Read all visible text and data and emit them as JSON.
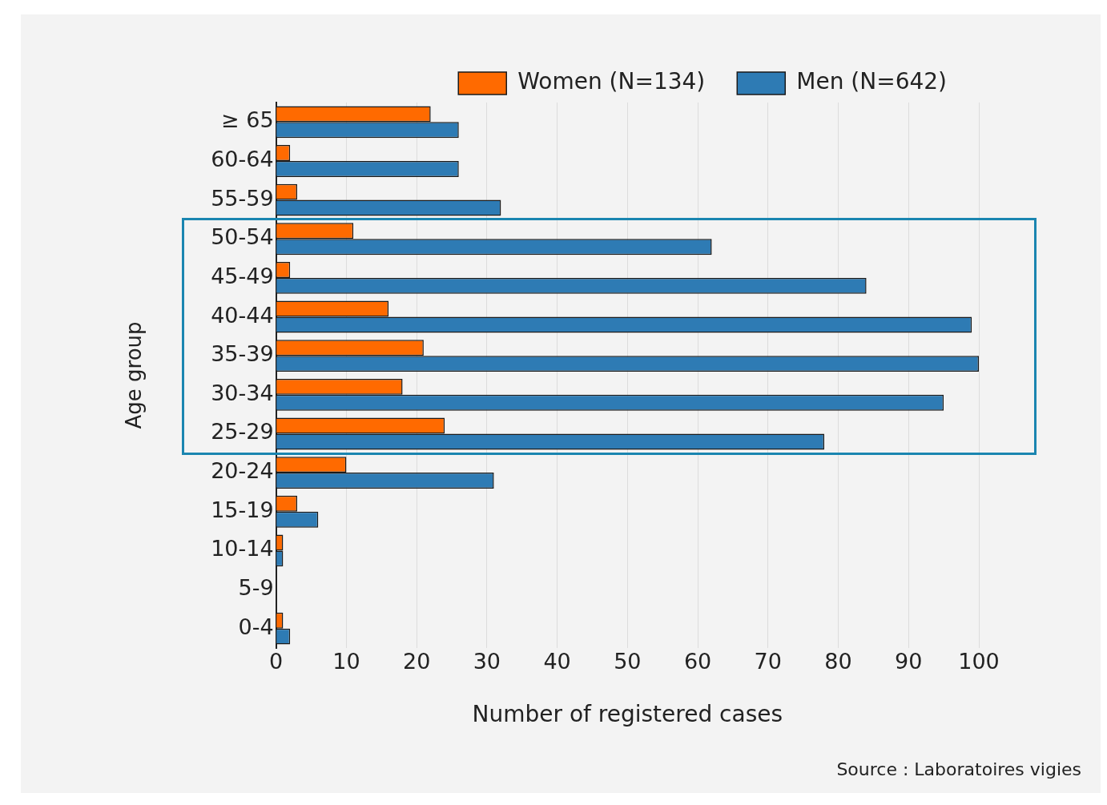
{
  "chart_data": {
    "type": "bar",
    "orientation": "horizontal",
    "categories": [
      "≥ 65",
      "60-64",
      "55-59",
      "50-54",
      "45-49",
      "40-44",
      "35-39",
      "30-34",
      "25-29",
      "20-24",
      "15-19",
      "10-14",
      "5-9",
      "0-4"
    ],
    "series": [
      {
        "name": "Women (N=134)",
        "color": "#ff6a00",
        "values": [
          22,
          2,
          3,
          11,
          2,
          16,
          21,
          18,
          24,
          10,
          3,
          1,
          0,
          1
        ]
      },
      {
        "name": "Men (N=642)",
        "color": "#2e7bb4",
        "values": [
          26,
          26,
          32,
          62,
          84,
          99,
          100,
          95,
          78,
          31,
          6,
          1,
          0,
          2
        ]
      }
    ],
    "xlabel": "Number of registered cases",
    "ylabel": "Age group",
    "xlim": [
      0,
      100
    ],
    "xticks": [
      0,
      10,
      20,
      30,
      40,
      50,
      60,
      70,
      80,
      90,
      100
    ],
    "grid": "x",
    "legend": "top right",
    "annotations": [
      "Source : Laboratoires vigies"
    ]
  }
}
